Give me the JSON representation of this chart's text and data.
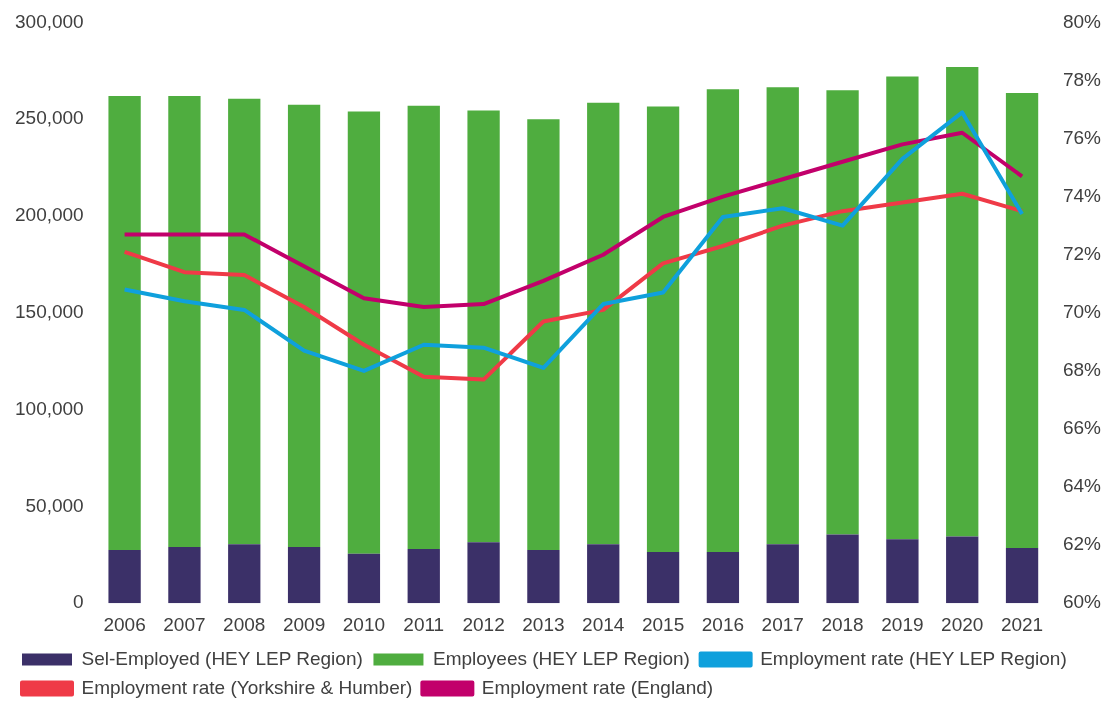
{
  "chart_data": {
    "type": "bar",
    "stacked": true,
    "legend": "bottom",
    "marker": "none",
    "categories": [
      "2006",
      "2007",
      "2008",
      "2009",
      "2010",
      "2011",
      "2012",
      "2013",
      "2014",
      "2015",
      "2016",
      "2017",
      "2018",
      "2019",
      "2020",
      "2021"
    ],
    "ylim": [
      0,
      300000
    ],
    "yticks": [
      {
        "value": 0,
        "label": "0"
      },
      {
        "value": 50000,
        "label": "50,000"
      },
      {
        "value": 100000,
        "label": "100,000"
      },
      {
        "value": 150000,
        "label": "150,000"
      },
      {
        "value": 200000,
        "label": "200,000"
      },
      {
        "value": 250000,
        "label": "250,000"
      },
      {
        "value": 300000,
        "label": "300,000"
      }
    ],
    "y2lim": [
      60,
      80
    ],
    "y2ticks": [
      {
        "value": 60,
        "label": "60%"
      },
      {
        "value": 62,
        "label": "62%"
      },
      {
        "value": 64,
        "label": "64%"
      },
      {
        "value": 66,
        "label": "66%"
      },
      {
        "value": 68,
        "label": "68%"
      },
      {
        "value": 70,
        "label": "70%"
      },
      {
        "value": 72,
        "label": "72%"
      },
      {
        "value": 74,
        "label": "74%"
      },
      {
        "value": 76,
        "label": "76%"
      },
      {
        "value": 78,
        "label": "78%"
      },
      {
        "value": 80,
        "label": "80%"
      }
    ],
    "series": [
      {
        "name": "Sel-Employed (HEY LEP Region)",
        "color": "#3b3068",
        "values": [
          27500,
          29000,
          30500,
          29000,
          25500,
          28000,
          31500,
          27500,
          30500,
          26500,
          26500,
          30500,
          35500,
          33000,
          34500,
          28500
        ]
      },
      {
        "name": "Employees (HEY LEP Region)",
        "color": "#4fad3f",
        "values": [
          234500,
          233000,
          230000,
          228500,
          228500,
          229000,
          223000,
          222500,
          228000,
          230000,
          239000,
          236000,
          229500,
          239000,
          242500,
          235000
        ]
      },
      {
        "name": "Employment rate (HEY LEP Region)",
        "type": "line",
        "axis": "y2",
        "color": "#0fa0dc",
        "values": [
          70.8,
          70.4,
          70.1,
          68.7,
          68.0,
          68.9,
          68.8,
          68.1,
          70.3,
          70.7,
          73.3,
          73.6,
          73.0,
          75.3,
          76.9,
          73.4
        ]
      },
      {
        "name": "Employment rate (Yorkshire & Humber)",
        "type": "line",
        "axis": "y2",
        "color": "#ef3a47",
        "values": [
          72.1,
          71.4,
          71.3,
          70.2,
          68.9,
          67.8,
          67.7,
          69.7,
          70.1,
          71.7,
          72.3,
          73.0,
          73.5,
          73.8,
          74.1,
          73.5
        ]
      },
      {
        "name": "Employment rate (England)",
        "type": "line",
        "axis": "y2",
        "color": "#c2006b",
        "values": [
          72.7,
          72.7,
          72.7,
          71.6,
          70.5,
          70.2,
          70.3,
          71.1,
          72.0,
          73.3,
          74.0,
          74.6,
          75.2,
          75.8,
          76.2,
          74.7
        ]
      }
    ]
  }
}
